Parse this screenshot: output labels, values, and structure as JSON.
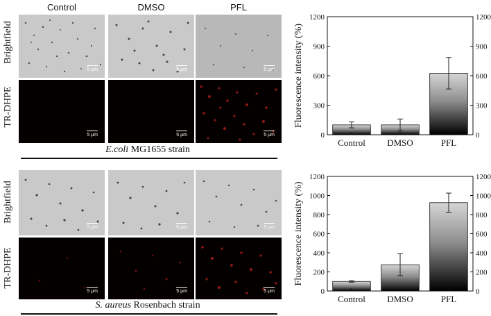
{
  "panels": [
    {
      "columns": [
        "Control",
        "DMSO",
        "PFL"
      ],
      "rows": [
        "Brightfield",
        "TR-DHPE"
      ],
      "scale_bar": "5 μm",
      "strain_italic": "E.coli",
      "strain_rest": " MG1655 strain"
    },
    {
      "rows": [
        "Brightfield",
        "TR-DHPE"
      ],
      "scale_bar": "5 μm",
      "strain_italic": "S. aureus",
      "strain_rest": " Rosenbach strain"
    }
  ],
  "chart_data": [
    {
      "type": "bar",
      "categories": [
        "Control",
        "DMSO",
        "PFL"
      ],
      "values": [
        100,
        100,
        625
      ],
      "errors": [
        30,
        60,
        160
      ],
      "ylabel": "Fluorescence intensity (%)",
      "ylim": [
        0,
        1200
      ],
      "yticks": [
        0,
        300,
        600,
        900,
        1200
      ],
      "grid": false,
      "fill": "vertical gradient black to light gray"
    },
    {
      "type": "bar",
      "categories": [
        "Control",
        "DMSO",
        "PFL"
      ],
      "values": [
        100,
        275,
        925
      ],
      "errors": [
        8,
        115,
        100
      ],
      "ylabel": "Fluorescence intensity (%)",
      "ylim": [
        0,
        1200
      ],
      "yticks": [
        0,
        200,
        400,
        600,
        800,
        1000,
        1200
      ],
      "grid": false,
      "fill": "vertical gradient black to light gray"
    }
  ]
}
